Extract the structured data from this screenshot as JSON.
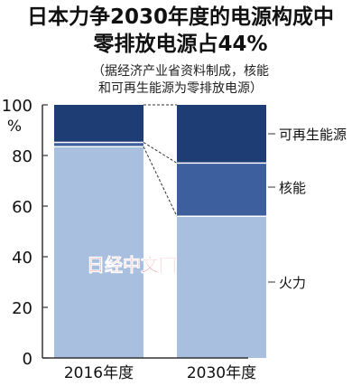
{
  "title_line1": "日本力争2030年度的电源构成中",
  "title_line2": "零排放电源占44%",
  "note_line1": "（据经济产业省资料制成，核能",
  "note_line2": "和可再生能源为零排放电源）",
  "watermark": "日经中文网",
  "colors": {
    "thermal": "#a9bfe0",
    "nuclear": "#3d5f9d",
    "renewable": "#1e3d74",
    "watermark": "#e0212f"
  },
  "chart_data": {
    "type": "bar",
    "stacked": true,
    "categories": [
      "2016年度",
      "2030年度"
    ],
    "series": [
      {
        "name": "火力",
        "values": [
          83.5,
          56
        ]
      },
      {
        "name": "核能",
        "values": [
          1.7,
          21
        ]
      },
      {
        "name": "可再生能源",
        "values": [
          14.8,
          23
        ]
      }
    ],
    "ylabel": "%",
    "ylim": [
      0,
      100
    ],
    "yticks": [
      0,
      20,
      40,
      60,
      80,
      100
    ],
    "grid": false,
    "legend": "right"
  }
}
